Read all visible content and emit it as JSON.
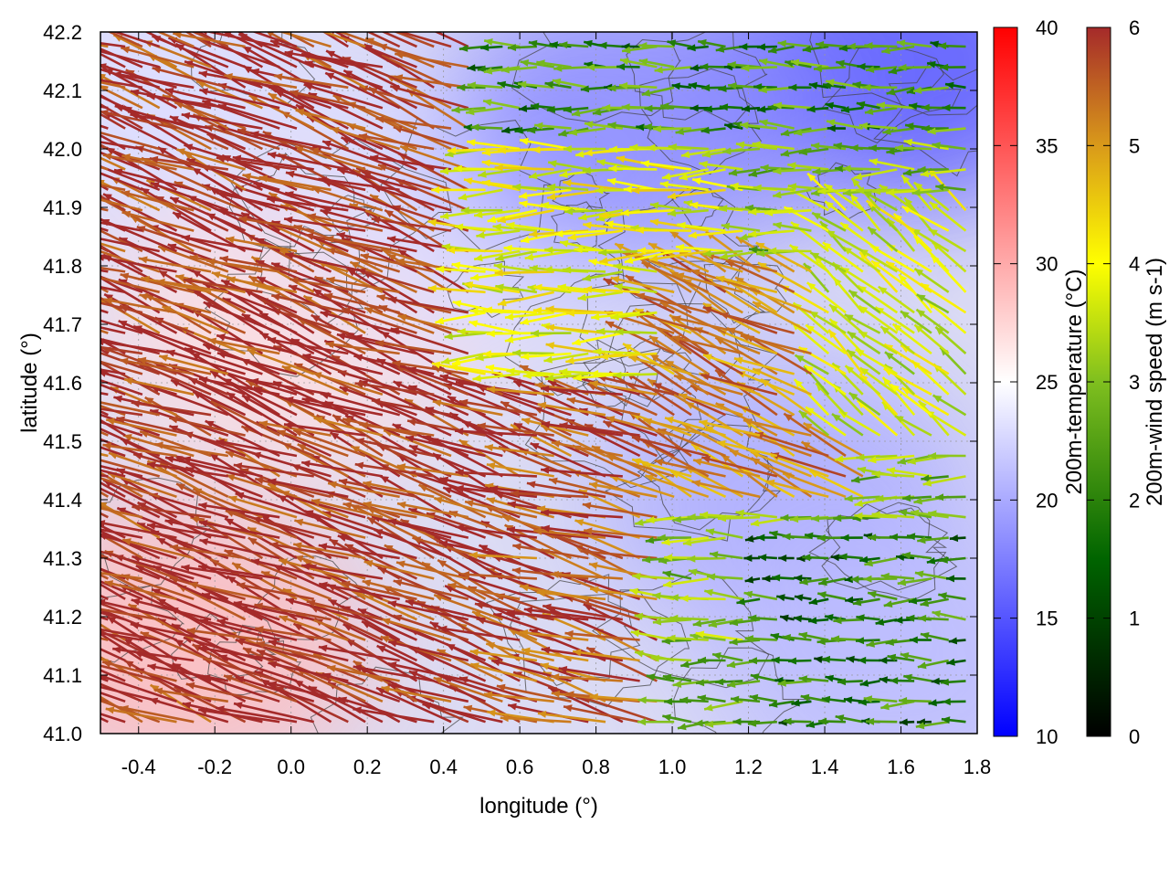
{
  "chart_data": {
    "type": "vector-field",
    "xlabel": "longitude (°)",
    "ylabel": "latitude (°)",
    "xlim": [
      -0.5,
      1.8
    ],
    "ylim": [
      41.0,
      42.2
    ],
    "x_ticks": [
      "-0.4",
      "-0.2",
      "0.0",
      "0.2",
      "0.4",
      "0.6",
      "0.8",
      "1.0",
      "1.2",
      "1.4",
      "1.6",
      "1.8"
    ],
    "x_tick_values": [
      -0.4,
      -0.2,
      0.0,
      0.2,
      0.4,
      0.6,
      0.8,
      1.0,
      1.2,
      1.4,
      1.6,
      1.8
    ],
    "y_ticks": [
      "41.0",
      "41.1",
      "41.2",
      "41.3",
      "41.4",
      "41.5",
      "41.6",
      "41.7",
      "41.8",
      "41.9",
      "42.0",
      "42.1",
      "42.2"
    ],
    "y_tick_values": [
      41.0,
      41.1,
      41.2,
      41.3,
      41.4,
      41.5,
      41.6,
      41.7,
      41.8,
      41.9,
      42.0,
      42.1,
      42.2
    ],
    "grid": true,
    "background_field": {
      "name": "200m-temperature (°C)",
      "range": [
        10,
        40
      ],
      "colormap": [
        "#0000ff",
        "#ffffff",
        "#ff0000"
      ],
      "tick_labels": [
        "10",
        "15",
        "20",
        "25",
        "30",
        "35",
        "40"
      ],
      "tick_values": [
        10,
        15,
        20,
        25,
        30,
        35,
        40
      ],
      "regions": [
        {
          "lon": -0.3,
          "lat": 41.15,
          "value": 29
        },
        {
          "lon": 0.0,
          "lat": 41.7,
          "value": 27
        },
        {
          "lon": 0.5,
          "lat": 41.9,
          "value": 23
        },
        {
          "lon": 1.3,
          "lat": 41.4,
          "value": 20
        },
        {
          "lon": 1.6,
          "lat": 42.15,
          "value": 15
        },
        {
          "lon": 0.9,
          "lat": 42.05,
          "value": 18
        },
        {
          "lon": 1.6,
          "lat": 41.1,
          "value": 21
        },
        {
          "lon": -0.4,
          "lat": 42.1,
          "value": 23
        }
      ]
    },
    "vector_field": {
      "name": "200m-wind speed (m s-1)",
      "range": [
        0,
        6
      ],
      "colormap": [
        "#000000",
        "#006400",
        "#7fbf1f",
        "#ffff00",
        "#d99a1a",
        "#a52a2a"
      ],
      "tick_labels": [
        "0",
        "1",
        "2",
        "3",
        "4",
        "5",
        "6"
      ],
      "tick_values": [
        0,
        1,
        2,
        3,
        4,
        5,
        6
      ],
      "regions": [
        {
          "lon_range": [
            -0.5,
            0.6
          ],
          "lat_range": [
            41.0,
            42.2
          ],
          "speed": 5.9,
          "direction_deg": 160
        },
        {
          "lon_range": [
            0.6,
            1.0
          ],
          "lat_range": [
            41.0,
            41.6
          ],
          "speed": 5.6,
          "direction_deg": 165
        },
        {
          "lon_range": [
            0.5,
            1.2
          ],
          "lat_range": [
            41.6,
            42.0
          ],
          "speed": 3.5,
          "direction_deg": 180
        },
        {
          "lon_range": [
            1.0,
            1.5
          ],
          "lat_range": [
            41.4,
            41.8
          ],
          "speed": 5.0,
          "direction_deg": 155
        },
        {
          "lon_range": [
            1.2,
            1.8
          ],
          "lat_range": [
            41.0,
            41.35
          ],
          "speed": 1.5,
          "direction_deg": 180
        },
        {
          "lon_range": [
            0.5,
            1.8
          ],
          "lat_range": [
            42.0,
            42.2
          ],
          "speed": 1.8,
          "direction_deg": 180
        },
        {
          "lon_range": [
            1.4,
            1.8
          ],
          "lat_range": [
            41.5,
            41.9
          ],
          "speed": 3.2,
          "direction_deg": 140
        }
      ]
    },
    "contours": true
  }
}
